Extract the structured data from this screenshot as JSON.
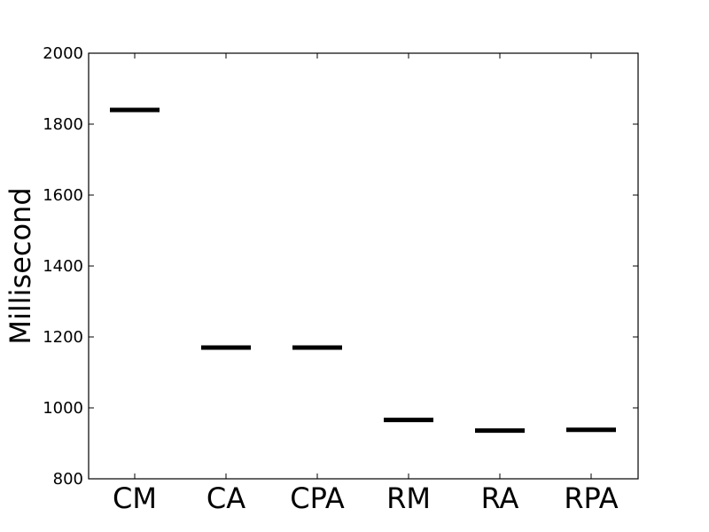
{
  "chart_data": {
    "type": "scatter",
    "marker": "horizontal-line",
    "title": "",
    "xlabel": "",
    "ylabel": "Millisecond",
    "categories": [
      "CM",
      "CA",
      "CPA",
      "RM",
      "RA",
      "RPA"
    ],
    "values": [
      1840,
      1170,
      1170,
      966,
      936,
      938
    ],
    "ylim": [
      800,
      2000
    ],
    "yticks": [
      800,
      1000,
      1200,
      1400,
      1600,
      1800,
      2000
    ],
    "ytick_labels": [
      "800",
      "1000",
      "1200",
      "1400",
      "1600",
      "1800",
      "2000"
    ],
    "grid": false,
    "legend": "none",
    "colors": {
      "marker": "#000000",
      "axes": "#000000",
      "background": "#ffffff"
    }
  }
}
